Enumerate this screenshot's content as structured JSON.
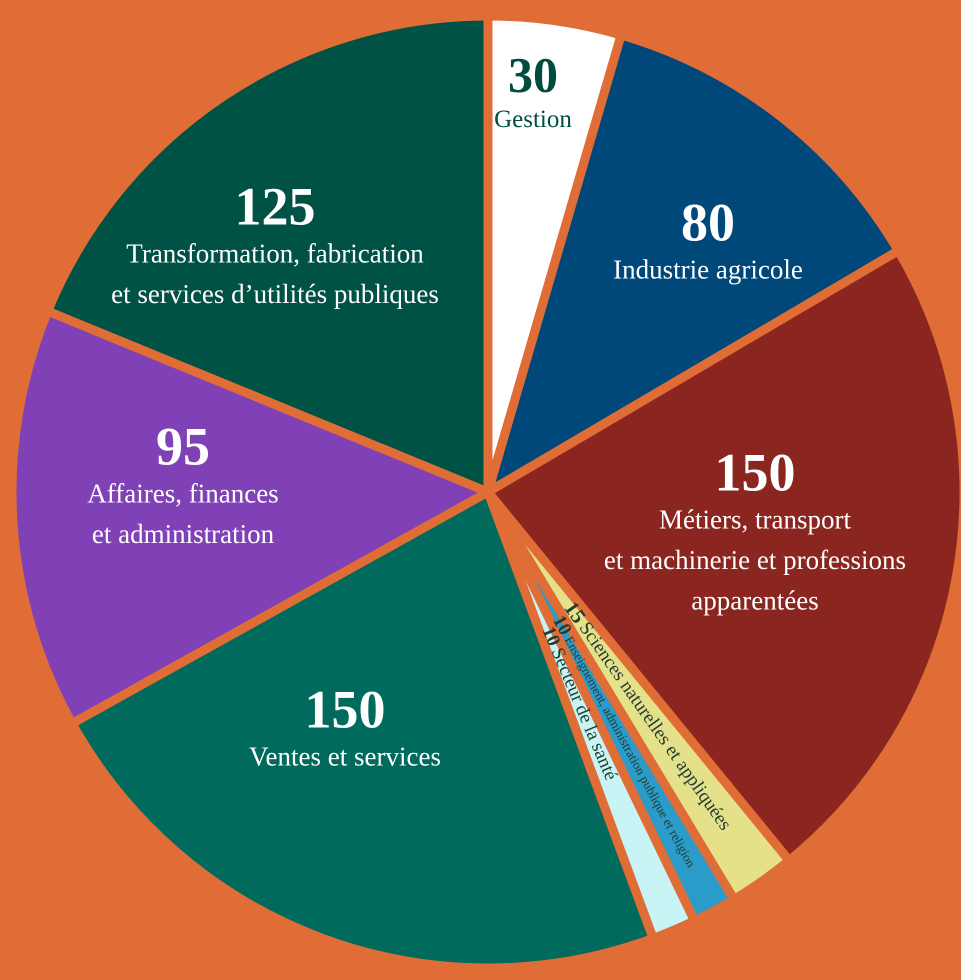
{
  "chart_data": {
    "type": "pie",
    "categories": [
      [
        "Gestion"
      ],
      [
        "Industrie agricole"
      ],
      [
        "Métiers, transport",
        "et machinerie et professions",
        "apparentées"
      ],
      [
        "Sciences naturelles et appliquées"
      ],
      [
        "Enseignement, administration publique et religion"
      ],
      [
        "Secteur de la santé"
      ],
      [
        "Ventes et services"
      ],
      [
        "Affaires, finances",
        "et administration"
      ],
      [
        "Transformation, fabrication",
        "et services d’utilités publiques"
      ]
    ],
    "values": [
      30,
      80,
      150,
      15,
      10,
      10,
      150,
      95,
      125
    ],
    "colors": [
      "#ffffff",
      "#00487a",
      "#8b2520",
      "#e5e08a",
      "#2b9bc9",
      "#c8f4f5",
      "#006a5c",
      "#8141b6",
      "#005244"
    ]
  }
}
